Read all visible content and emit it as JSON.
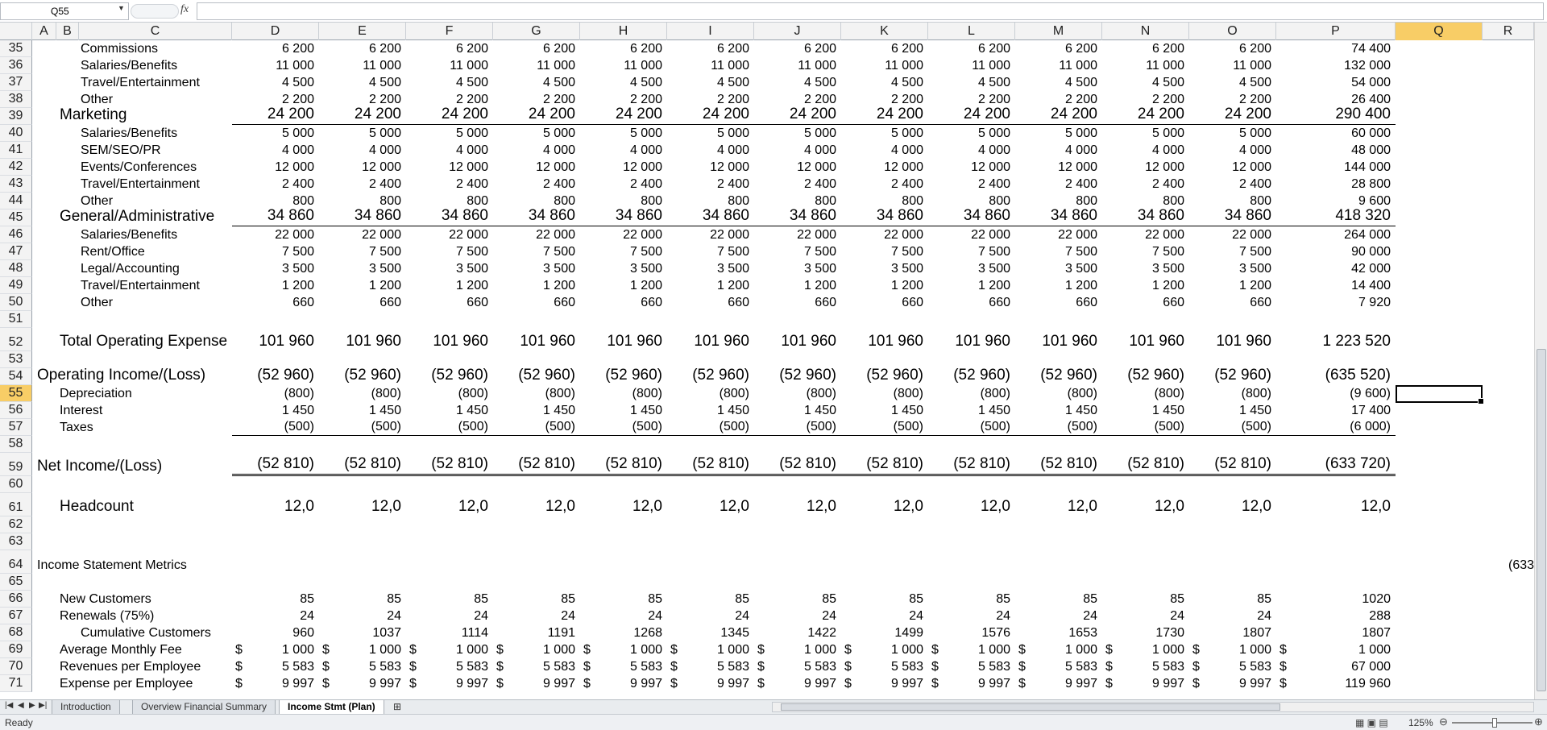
{
  "formula_bar": {
    "name_box": "Q55",
    "fx_label": "fx",
    "formula": ""
  },
  "columns": [
    "A",
    "B",
    "C",
    "D",
    "E",
    "F",
    "G",
    "H",
    "I",
    "J",
    "K",
    "L",
    "M",
    "N",
    "O",
    "P",
    "Q",
    "R"
  ],
  "selected_column": "Q",
  "selected_row": "55",
  "rows": [
    {
      "n": "35",
      "label": "Commissions",
      "indent": 2,
      "vals": [
        "6 200",
        "6 200",
        "6 200",
        "6 200",
        "6 200",
        "6 200",
        "6 200",
        "6 200",
        "6 200",
        "6 200",
        "6 200",
        "6 200"
      ],
      "total": "74 400"
    },
    {
      "n": "36",
      "label": "Salaries/Benefits",
      "indent": 2,
      "vals": [
        "11 000",
        "11 000",
        "11 000",
        "11 000",
        "11 000",
        "11 000",
        "11 000",
        "11 000",
        "11 000",
        "11 000",
        "11 000",
        "11 000"
      ],
      "total": "132 000"
    },
    {
      "n": "37",
      "label": "Travel/Entertainment",
      "indent": 2,
      "vals": [
        "4 500",
        "4 500",
        "4 500",
        "4 500",
        "4 500",
        "4 500",
        "4 500",
        "4 500",
        "4 500",
        "4 500",
        "4 500",
        "4 500"
      ],
      "total": "54 000"
    },
    {
      "n": "38",
      "label": "Other",
      "indent": 2,
      "vals": [
        "2 200",
        "2 200",
        "2 200",
        "2 200",
        "2 200",
        "2 200",
        "2 200",
        "2 200",
        "2 200",
        "2 200",
        "2 200",
        "2 200"
      ],
      "total": "26 400"
    },
    {
      "n": "39",
      "label": "Marketing",
      "indent": 1,
      "big": true,
      "ul": "ul1",
      "vals": [
        "24 200",
        "24 200",
        "24 200",
        "24 200",
        "24 200",
        "24 200",
        "24 200",
        "24 200",
        "24 200",
        "24 200",
        "24 200",
        "24 200"
      ],
      "total": "290 400"
    },
    {
      "n": "40",
      "label": "Salaries/Benefits",
      "indent": 2,
      "vals": [
        "5 000",
        "5 000",
        "5 000",
        "5 000",
        "5 000",
        "5 000",
        "5 000",
        "5 000",
        "5 000",
        "5 000",
        "5 000",
        "5 000"
      ],
      "total": "60 000"
    },
    {
      "n": "41",
      "label": "SEM/SEO/PR",
      "indent": 2,
      "vals": [
        "4 000",
        "4 000",
        "4 000",
        "4 000",
        "4 000",
        "4 000",
        "4 000",
        "4 000",
        "4 000",
        "4 000",
        "4 000",
        "4 000"
      ],
      "total": "48 000"
    },
    {
      "n": "42",
      "label": "Events/Conferences",
      "indent": 2,
      "vals": [
        "12 000",
        "12 000",
        "12 000",
        "12 000",
        "12 000",
        "12 000",
        "12 000",
        "12 000",
        "12 000",
        "12 000",
        "12 000",
        "12 000"
      ],
      "total": "144 000"
    },
    {
      "n": "43",
      "label": "Travel/Entertainment",
      "indent": 2,
      "vals": [
        "2 400",
        "2 400",
        "2 400",
        "2 400",
        "2 400",
        "2 400",
        "2 400",
        "2 400",
        "2 400",
        "2 400",
        "2 400",
        "2 400"
      ],
      "total": "28 800"
    },
    {
      "n": "44",
      "label": "Other",
      "indent": 2,
      "vals": [
        "800",
        "800",
        "800",
        "800",
        "800",
        "800",
        "800",
        "800",
        "800",
        "800",
        "800",
        "800"
      ],
      "total": "9 600"
    },
    {
      "n": "45",
      "label": "General/Administrative",
      "indent": 1,
      "big": true,
      "ul": "ul1",
      "vals": [
        "34 860",
        "34 860",
        "34 860",
        "34 860",
        "34 860",
        "34 860",
        "34 860",
        "34 860",
        "34 860",
        "34 860",
        "34 860",
        "34 860"
      ],
      "total": "418 320"
    },
    {
      "n": "46",
      "label": "Salaries/Benefits",
      "indent": 2,
      "vals": [
        "22 000",
        "22 000",
        "22 000",
        "22 000",
        "22 000",
        "22 000",
        "22 000",
        "22 000",
        "22 000",
        "22 000",
        "22 000",
        "22 000"
      ],
      "total": "264 000"
    },
    {
      "n": "47",
      "label": "Rent/Office",
      "indent": 2,
      "vals": [
        "7 500",
        "7 500",
        "7 500",
        "7 500",
        "7 500",
        "7 500",
        "7 500",
        "7 500",
        "7 500",
        "7 500",
        "7 500",
        "7 500"
      ],
      "total": "90 000"
    },
    {
      "n": "48",
      "label": "Legal/Accounting",
      "indent": 2,
      "vals": [
        "3 500",
        "3 500",
        "3 500",
        "3 500",
        "3 500",
        "3 500",
        "3 500",
        "3 500",
        "3 500",
        "3 500",
        "3 500",
        "3 500"
      ],
      "total": "42 000"
    },
    {
      "n": "49",
      "label": "Travel/Entertainment",
      "indent": 2,
      "vals": [
        "1 200",
        "1 200",
        "1 200",
        "1 200",
        "1 200",
        "1 200",
        "1 200",
        "1 200",
        "1 200",
        "1 200",
        "1 200",
        "1 200"
      ],
      "total": "14 400"
    },
    {
      "n": "50",
      "label": "Other",
      "indent": 2,
      "vals": [
        "660",
        "660",
        "660",
        "660",
        "660",
        "660",
        "660",
        "660",
        "660",
        "660",
        "660",
        "660"
      ],
      "total": "7 920"
    },
    {
      "n": "51",
      "label": "",
      "vals": [],
      "total": ""
    },
    {
      "n": "52",
      "label": "Total Operating Expense",
      "indent": 1,
      "big": true,
      "tall": true,
      "vals": [
        "101 960",
        "101 960",
        "101 960",
        "101 960",
        "101 960",
        "101 960",
        "101 960",
        "101 960",
        "101 960",
        "101 960",
        "101 960",
        "101 960"
      ],
      "total": "1 223 520"
    },
    {
      "n": "53",
      "label": "",
      "vals": [],
      "total": ""
    },
    {
      "n": "54",
      "label": "Operating Income/(Loss)",
      "indent": 0,
      "big": true,
      "vals": [
        "(52 960)",
        "(52 960)",
        "(52 960)",
        "(52 960)",
        "(52 960)",
        "(52 960)",
        "(52 960)",
        "(52 960)",
        "(52 960)",
        "(52 960)",
        "(52 960)",
        "(52 960)"
      ],
      "total": "(635 520)"
    },
    {
      "n": "55",
      "label": "Depreciation",
      "indent": 1,
      "vals": [
        "(800)",
        "(800)",
        "(800)",
        "(800)",
        "(800)",
        "(800)",
        "(800)",
        "(800)",
        "(800)",
        "(800)",
        "(800)",
        "(800)"
      ],
      "total": "(9 600)"
    },
    {
      "n": "56",
      "label": "Interest",
      "indent": 1,
      "vals": [
        "1 450",
        "1 450",
        "1 450",
        "1 450",
        "1 450",
        "1 450",
        "1 450",
        "1 450",
        "1 450",
        "1 450",
        "1 450",
        "1 450"
      ],
      "total": "17 400"
    },
    {
      "n": "57",
      "label": "Taxes",
      "indent": 1,
      "ul": "ul1",
      "vals": [
        "(500)",
        "(500)",
        "(500)",
        "(500)",
        "(500)",
        "(500)",
        "(500)",
        "(500)",
        "(500)",
        "(500)",
        "(500)",
        "(500)"
      ],
      "total": "(6 000)"
    },
    {
      "n": "58",
      "label": "",
      "vals": [],
      "total": ""
    },
    {
      "n": "59",
      "label": "Net Income/(Loss)",
      "indent": 0,
      "big": true,
      "tall": true,
      "ul": "ul2",
      "vals": [
        "(52 810)",
        "(52 810)",
        "(52 810)",
        "(52 810)",
        "(52 810)",
        "(52 810)",
        "(52 810)",
        "(52 810)",
        "(52 810)",
        "(52 810)",
        "(52 810)",
        "(52 810)"
      ],
      "total": "(633 720)"
    },
    {
      "n": "60",
      "label": "",
      "vals": [],
      "total": ""
    },
    {
      "n": "61",
      "label": "Headcount",
      "indent": 1,
      "big": true,
      "tall": true,
      "vals": [
        "12,0",
        "12,0",
        "12,0",
        "12,0",
        "12,0",
        "12,0",
        "12,0",
        "12,0",
        "12,0",
        "12,0",
        "12,0",
        "12,0"
      ],
      "total": "12,0"
    },
    {
      "n": "62",
      "label": "",
      "vals": [],
      "total": ""
    },
    {
      "n": "63",
      "label": "",
      "vals": [],
      "total": ""
    },
    {
      "n": "64",
      "label": "Income Statement Metrics",
      "indent": 0,
      "tall": true,
      "vals": [],
      "total": "",
      "r_val": "(633"
    },
    {
      "n": "65",
      "label": "",
      "vals": [],
      "total": ""
    },
    {
      "n": "66",
      "label": "New Customers",
      "indent": 1,
      "vals": [
        "85",
        "85",
        "85",
        "85",
        "85",
        "85",
        "85",
        "85",
        "85",
        "85",
        "85",
        "85"
      ],
      "total": "1020"
    },
    {
      "n": "67",
      "label": "Renewals (75%)",
      "indent": 1,
      "vals": [
        "24",
        "24",
        "24",
        "24",
        "24",
        "24",
        "24",
        "24",
        "24",
        "24",
        "24",
        "24"
      ],
      "total": "288"
    },
    {
      "n": "68",
      "label": "Cumulative Customers",
      "indent": 2,
      "vals": [
        "960",
        "1037",
        "1114",
        "1191",
        "1268",
        "1345",
        "1422",
        "1499",
        "1576",
        "1653",
        "1730",
        "1807"
      ],
      "total": "1807"
    },
    {
      "n": "69",
      "label": "Average Monthly Fee",
      "indent": 1,
      "dollar": true,
      "vals": [
        "1 000",
        "1 000",
        "1 000",
        "1 000",
        "1 000",
        "1 000",
        "1 000",
        "1 000",
        "1 000",
        "1 000",
        "1 000",
        "1 000"
      ],
      "total": "1 000"
    },
    {
      "n": "70",
      "label": "Revenues per Employee",
      "indent": 1,
      "dollar": true,
      "vals": [
        "5 583",
        "5 583",
        "5 583",
        "5 583",
        "5 583",
        "5 583",
        "5 583",
        "5 583",
        "5 583",
        "5 583",
        "5 583",
        "5 583"
      ],
      "total": "67 000"
    },
    {
      "n": "71",
      "label": "Expense per Employee",
      "indent": 1,
      "dollar": true,
      "vals": [
        "9 997",
        "9 997",
        "9 997",
        "9 997",
        "9 997",
        "9 997",
        "9 997",
        "9 997",
        "9 997",
        "9 997",
        "9 997",
        "9 997"
      ],
      "total": "119 960"
    }
  ],
  "dollar_sign": "$",
  "sheet_tabs": [
    {
      "label": "Introduction",
      "active": false
    },
    {
      "label": "Overview Financial Summary",
      "active": false
    },
    {
      "label": "Income Stmt (Plan)",
      "active": true
    }
  ],
  "tab_nav_icons": [
    "first-sheet-icon",
    "prev-sheet-icon",
    "next-sheet-icon",
    "last-sheet-icon"
  ],
  "status": {
    "ready": "Ready",
    "zoom": "125%"
  },
  "colors": {
    "header_bg": "#f3f3f3",
    "selected_header": "#f8cd66",
    "gridline": "#dadde2"
  }
}
